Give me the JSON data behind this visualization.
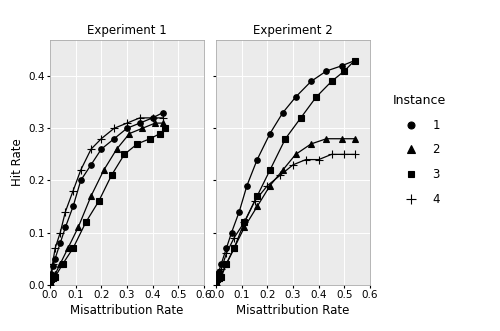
{
  "exp1": {
    "instance1": {
      "x": [
        0.0,
        0.005,
        0.01,
        0.02,
        0.04,
        0.06,
        0.09,
        0.12,
        0.16,
        0.2,
        0.25,
        0.3,
        0.35,
        0.4,
        0.44
      ],
      "y": [
        0.0,
        0.02,
        0.035,
        0.05,
        0.08,
        0.11,
        0.15,
        0.2,
        0.23,
        0.26,
        0.28,
        0.3,
        0.31,
        0.32,
        0.33
      ]
    },
    "instance2": {
      "x": [
        0.0,
        0.005,
        0.01,
        0.02,
        0.04,
        0.07,
        0.11,
        0.16,
        0.21,
        0.26,
        0.31,
        0.36,
        0.41,
        0.44
      ],
      "y": [
        0.0,
        0.01,
        0.015,
        0.02,
        0.04,
        0.07,
        0.11,
        0.17,
        0.22,
        0.26,
        0.29,
        0.3,
        0.31,
        0.31
      ]
    },
    "instance3": {
      "x": [
        0.0,
        0.005,
        0.01,
        0.02,
        0.05,
        0.09,
        0.14,
        0.19,
        0.24,
        0.29,
        0.34,
        0.39,
        0.43,
        0.45
      ],
      "y": [
        0.0,
        0.01,
        0.012,
        0.015,
        0.04,
        0.07,
        0.12,
        0.16,
        0.21,
        0.25,
        0.27,
        0.28,
        0.29,
        0.3
      ]
    },
    "instance4": {
      "x": [
        0.0,
        0.005,
        0.01,
        0.02,
        0.04,
        0.06,
        0.09,
        0.12,
        0.16,
        0.2,
        0.25,
        0.3,
        0.35,
        0.4,
        0.44
      ],
      "y": [
        0.0,
        0.02,
        0.04,
        0.07,
        0.1,
        0.14,
        0.18,
        0.22,
        0.26,
        0.28,
        0.3,
        0.31,
        0.32,
        0.32,
        0.32
      ]
    }
  },
  "exp2": {
    "instance1": {
      "x": [
        0.0,
        0.005,
        0.01,
        0.02,
        0.04,
        0.06,
        0.09,
        0.12,
        0.16,
        0.21,
        0.26,
        0.31,
        0.37,
        0.43,
        0.49,
        0.54
      ],
      "y": [
        0.0,
        0.02,
        0.025,
        0.04,
        0.07,
        0.1,
        0.14,
        0.19,
        0.24,
        0.29,
        0.33,
        0.36,
        0.39,
        0.41,
        0.42,
        0.43
      ]
    },
    "instance2": {
      "x": [
        0.0,
        0.005,
        0.01,
        0.02,
        0.04,
        0.07,
        0.11,
        0.16,
        0.21,
        0.26,
        0.31,
        0.37,
        0.43,
        0.49,
        0.54
      ],
      "y": [
        0.0,
        0.01,
        0.012,
        0.02,
        0.04,
        0.07,
        0.11,
        0.15,
        0.19,
        0.22,
        0.25,
        0.27,
        0.28,
        0.28,
        0.28
      ]
    },
    "instance3": {
      "x": [
        0.0,
        0.005,
        0.01,
        0.02,
        0.04,
        0.07,
        0.11,
        0.16,
        0.21,
        0.27,
        0.33,
        0.39,
        0.45,
        0.5,
        0.54
      ],
      "y": [
        0.0,
        0.01,
        0.012,
        0.015,
        0.04,
        0.07,
        0.12,
        0.17,
        0.22,
        0.28,
        0.32,
        0.36,
        0.39,
        0.41,
        0.43
      ]
    },
    "instance4": {
      "x": [
        0.0,
        0.005,
        0.01,
        0.02,
        0.04,
        0.07,
        0.11,
        0.15,
        0.2,
        0.25,
        0.3,
        0.35,
        0.4,
        0.45,
        0.5,
        0.54
      ],
      "y": [
        0.0,
        0.01,
        0.015,
        0.03,
        0.06,
        0.09,
        0.12,
        0.16,
        0.19,
        0.21,
        0.23,
        0.24,
        0.24,
        0.25,
        0.25,
        0.25
      ]
    }
  },
  "panel_titles": [
    "Experiment 1",
    "Experiment 2"
  ],
  "xlabel": "Misattribution Rate",
  "ylabel": "Hit Rate",
  "legend_title": "Instance",
  "xlim": [
    0.0,
    0.6
  ],
  "ylim": [
    0.0,
    0.47
  ],
  "xticks": [
    0.0,
    0.1,
    0.2,
    0.3,
    0.4,
    0.5,
    0.6
  ],
  "yticks": [
    0.0,
    0.1,
    0.2,
    0.3,
    0.4
  ],
  "line_color": "#000000",
  "strip_bg": "#d9d9d9",
  "plot_bg": "#ebebeb",
  "grid_color": "#ffffff",
  "marker_chars": [
    "o",
    "^",
    "s",
    "+"
  ],
  "marker_sizes": [
    4,
    5,
    4,
    6
  ],
  "marker_labels": [
    "1",
    "2",
    "3",
    "4"
  ]
}
